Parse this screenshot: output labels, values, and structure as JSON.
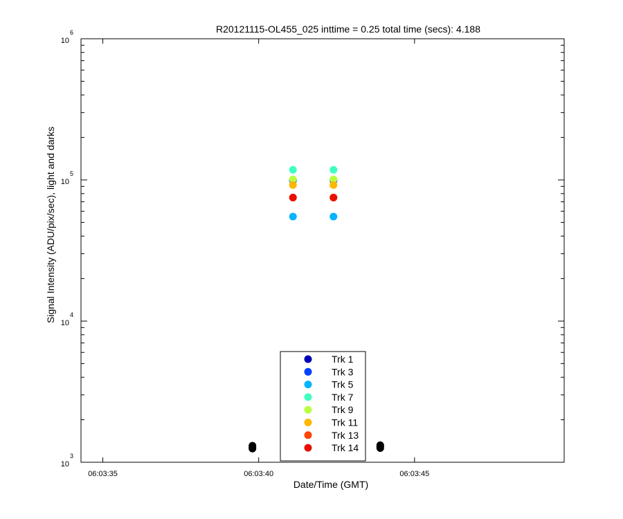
{
  "chart_data": {
    "type": "scatter",
    "title": "R20121115-OL455_025 inttime = 0.25 total time (secs): 4.188",
    "xlabel": "Date/Time (GMT)",
    "ylabel": "Signal Intensity (ADU/pix/sec), light and darks",
    "y_scale": "log",
    "xlim": [
      "06:03:34.3",
      "06:03:49.8"
    ],
    "ylim": [
      1000,
      1000000
    ],
    "x_ticks": [
      {
        "t": "06:03:35",
        "label": "06:03:35"
      },
      {
        "t": "06:03:40",
        "label": "06:03:40"
      },
      {
        "t": "06:03:45",
        "label": "06:03:45"
      }
    ],
    "y_ticks": [
      {
        "value": 1000,
        "base": "10",
        "exp": "3"
      },
      {
        "value": 10000,
        "base": "10",
        "exp": "4"
      },
      {
        "value": 100000,
        "base": "10",
        "exp": "5"
      },
      {
        "value": 1000000,
        "base": "10",
        "exp": "6"
      }
    ],
    "legend_position": "bottom-center",
    "series": [
      {
        "name": "Trk 1",
        "color": "#0000b8",
        "x": [
          "06:03:41.1",
          "06:03:42.4"
        ],
        "y": [
          100000,
          100000
        ]
      },
      {
        "name": "Trk 3",
        "color": "#0040ff",
        "x": [
          "06:03:41.1",
          "06:03:42.4"
        ],
        "y": [
          99000,
          99000
        ]
      },
      {
        "name": "Trk 5",
        "color": "#00b4ff",
        "x": [
          "06:03:41.1",
          "06:03:42.4"
        ],
        "y": [
          55000,
          55000
        ]
      },
      {
        "name": "Trk 7",
        "color": "#40ffc0",
        "x": [
          "06:03:41.1",
          "06:03:42.4"
        ],
        "y": [
          118000,
          118000
        ]
      },
      {
        "name": "Trk 9",
        "color": "#b8ff40",
        "x": [
          "06:03:41.1",
          "06:03:42.4"
        ],
        "y": [
          101000,
          101000
        ]
      },
      {
        "name": "Trk 11",
        "color": "#ffb800",
        "x": [
          "06:03:41.1",
          "06:03:42.4"
        ],
        "y": [
          92000,
          92000
        ]
      },
      {
        "name": "Trk 13",
        "color": "#ff4400",
        "x": [
          "06:03:41.1",
          "06:03:42.4"
        ],
        "y": [
          75000,
          75000
        ]
      },
      {
        "name": "Trk 14",
        "color": "#e81000",
        "x": [
          "06:03:41.1",
          "06:03:42.4"
        ],
        "y": [
          75000,
          75000
        ]
      }
    ],
    "darks": {
      "color": "#000000",
      "x": [
        "06:03:39.8",
        "06:03:39.8",
        "06:03:39.8",
        "06:03:43.9",
        "06:03:43.9",
        "06:03:43.9"
      ],
      "y": [
        1250,
        1280,
        1310,
        1260,
        1290,
        1320
      ]
    }
  }
}
